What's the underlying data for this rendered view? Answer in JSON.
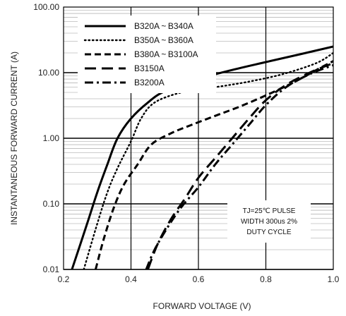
{
  "chart_data": {
    "type": "line",
    "xlabel": "FORWARD VOLTAGE (V)",
    "ylabel": "INSTANTANEOUS FORWARD CURRENT (A)",
    "xlim": [
      0.2,
      1.0
    ],
    "ylim": [
      0.01,
      100
    ],
    "yscale": "log",
    "x_ticks": [
      "0.2",
      "0.4",
      "0.6",
      "0.8",
      "1.0"
    ],
    "y_ticks": [
      "0.01",
      "0.10",
      "1.00",
      "10.00",
      "100.00"
    ],
    "grid": "on",
    "legend_position": "top-left",
    "annotation": [
      "TJ=25℃ PULSE",
      "WIDTH 300us 2%",
      "DUTY CYCLE"
    ],
    "series": [
      {
        "name": "B320A ~ B340A",
        "style": "solid",
        "points": [
          [
            0.225,
            0.01
          ],
          [
            0.27,
            0.05
          ],
          [
            0.3,
            0.15
          ],
          [
            0.33,
            0.4
          ],
          [
            0.36,
            1.0
          ],
          [
            0.4,
            2.0
          ],
          [
            0.45,
            3.5
          ],
          [
            0.5,
            5.2
          ],
          [
            0.6,
            8.0
          ],
          [
            0.7,
            11.0
          ],
          [
            0.8,
            14.5
          ],
          [
            0.9,
            19.0
          ],
          [
            1.0,
            25.0
          ]
        ]
      },
      {
        "name": "B350A ~ B360A",
        "style": "dotted",
        "points": [
          [
            0.26,
            0.01
          ],
          [
            0.3,
            0.05
          ],
          [
            0.33,
            0.15
          ],
          [
            0.36,
            0.35
          ],
          [
            0.4,
            0.9
          ],
          [
            0.43,
            2.0
          ],
          [
            0.47,
            3.5
          ],
          [
            0.55,
            5.0
          ],
          [
            0.65,
            6.0
          ],
          [
            0.75,
            7.3
          ],
          [
            0.85,
            9.5
          ],
          [
            0.95,
            14.0
          ],
          [
            1.0,
            20.0
          ]
        ]
      },
      {
        "name": "B380A ~ B3100A",
        "style": "dashed",
        "points": [
          [
            0.295,
            0.01
          ],
          [
            0.32,
            0.03
          ],
          [
            0.35,
            0.09
          ],
          [
            0.38,
            0.2
          ],
          [
            0.42,
            0.4
          ],
          [
            0.46,
            0.8
          ],
          [
            0.52,
            1.2
          ],
          [
            0.58,
            1.6
          ],
          [
            0.65,
            2.2
          ],
          [
            0.72,
            3.0
          ],
          [
            0.8,
            4.5
          ],
          [
            0.88,
            7.0
          ],
          [
            0.95,
            11.0
          ],
          [
            1.0,
            15.0
          ]
        ]
      },
      {
        "name": "B3150A",
        "style": "longdash",
        "points": [
          [
            0.45,
            0.01
          ],
          [
            0.48,
            0.025
          ],
          [
            0.52,
            0.06
          ],
          [
            0.56,
            0.12
          ],
          [
            0.6,
            0.25
          ],
          [
            0.65,
            0.5
          ],
          [
            0.7,
            1.0
          ],
          [
            0.75,
            2.0
          ],
          [
            0.8,
            3.8
          ],
          [
            0.86,
            6.5
          ],
          [
            0.93,
            10.0
          ],
          [
            1.0,
            14.0
          ]
        ]
      },
      {
        "name": "B3200A",
        "style": "dashdot",
        "points": [
          [
            0.445,
            0.01
          ],
          [
            0.47,
            0.02
          ],
          [
            0.51,
            0.045
          ],
          [
            0.55,
            0.09
          ],
          [
            0.6,
            0.18
          ],
          [
            0.65,
            0.4
          ],
          [
            0.7,
            0.8
          ],
          [
            0.75,
            1.6
          ],
          [
            0.8,
            3.2
          ],
          [
            0.86,
            6.0
          ],
          [
            0.93,
            9.5
          ],
          [
            1.0,
            13.0
          ]
        ]
      }
    ]
  }
}
